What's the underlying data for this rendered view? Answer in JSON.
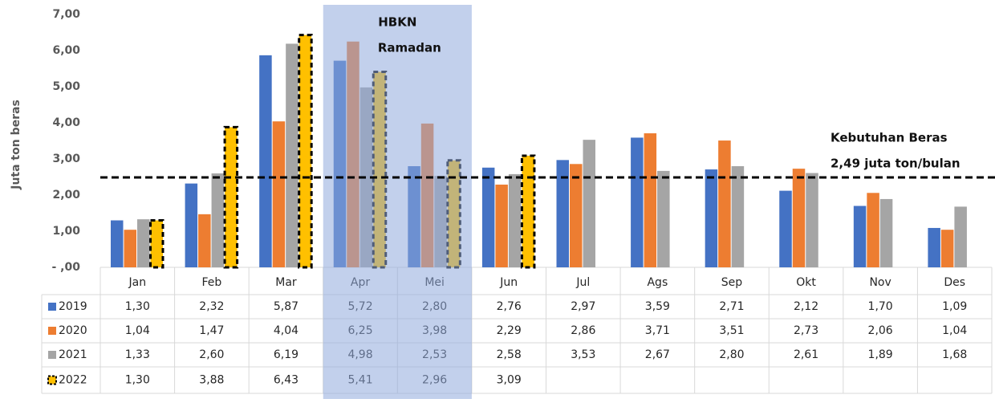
{
  "chart_data": {
    "type": "bar",
    "ylabel": "Juta ton beras",
    "categories": [
      "Jan",
      "Feb",
      "Mar",
      "Apr",
      "Mei",
      "Jun",
      "Jul",
      "Ags",
      "Sep",
      "Okt",
      "Nov",
      "Des"
    ],
    "series": [
      {
        "name": "2019",
        "color": "#4472c4",
        "values": [
          1.3,
          2.32,
          5.87,
          5.72,
          2.8,
          2.76,
          2.97,
          3.59,
          2.71,
          2.12,
          1.7,
          1.09
        ],
        "value_labels": [
          "1,30",
          "2,32",
          "5,87",
          "5,72",
          "2,80",
          "2,76",
          "2,97",
          "3,59",
          "2,71",
          "2,12",
          "1,70",
          "1,09"
        ]
      },
      {
        "name": "2020",
        "color": "#ed7d31",
        "values": [
          1.04,
          1.47,
          4.04,
          6.25,
          3.98,
          2.29,
          2.86,
          3.71,
          3.51,
          2.73,
          2.06,
          1.04
        ],
        "value_labels": [
          "1,04",
          "1,47",
          "4,04",
          "6,25",
          "3,98",
          "2,29",
          "2,86",
          "3,71",
          "3,51",
          "2,73",
          "2,06",
          "1,04"
        ]
      },
      {
        "name": "2021",
        "color": "#a5a5a5",
        "values": [
          1.33,
          2.6,
          6.19,
          4.98,
          2.53,
          2.58,
          3.53,
          2.67,
          2.8,
          2.61,
          1.89,
          1.68
        ],
        "value_labels": [
          "1,33",
          "2,60",
          "6,19",
          "4,98",
          "2,53",
          "2,58",
          "3,53",
          "2,67",
          "2,80",
          "2,61",
          "1,89",
          "1,68"
        ]
      },
      {
        "name": "2022",
        "color": "#ffc000",
        "dashed_border": true,
        "values": [
          1.3,
          3.88,
          6.43,
          5.41,
          2.96,
          3.09,
          null,
          null,
          null,
          null,
          null,
          null
        ],
        "value_labels": [
          "1,30",
          "3,88",
          "6,43",
          "5,41",
          "2,96",
          "3,09",
          null,
          null,
          null,
          null,
          null,
          null
        ]
      }
    ],
    "ylim": [
      0,
      7
    ],
    "yticks": [
      {
        "value": 0,
        "label": "- ,00"
      },
      {
        "value": 1,
        "label": "1,00"
      },
      {
        "value": 2,
        "label": "2,00"
      },
      {
        "value": 3,
        "label": "3,00"
      },
      {
        "value": 4,
        "label": "4,00"
      },
      {
        "value": 5,
        "label": "5,00"
      },
      {
        "value": 6,
        "label": "6,00"
      },
      {
        "value": 7,
        "label": "7,00"
      }
    ],
    "reference_line": {
      "value": 2.49,
      "label_lines": [
        "Kebutuhan Beras",
        "2,49 juta ton/bulan"
      ]
    },
    "highlight": {
      "from": 3,
      "to": 4,
      "label_lines": [
        "HBKN",
        "Ramadan"
      ]
    }
  }
}
